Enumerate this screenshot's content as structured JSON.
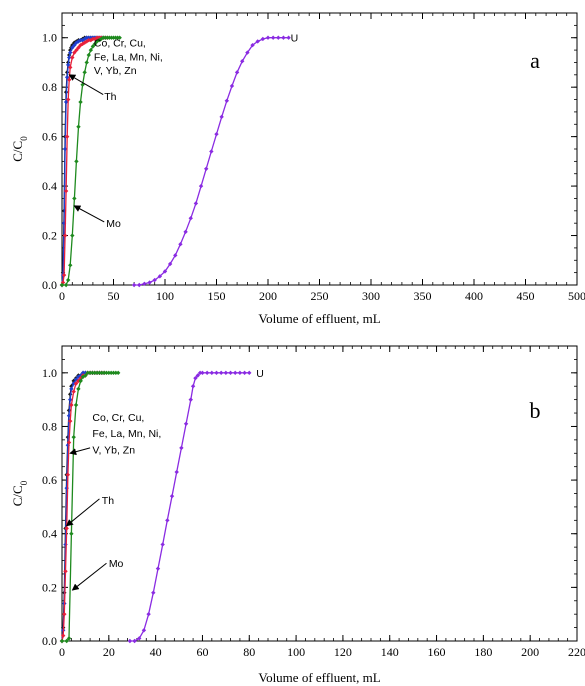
{
  "chart_data": [
    {
      "type": "line",
      "panel_label": "a",
      "xlabel": "Volume of effluent, mL",
      "ylabel_main": "C/C",
      "ylabel_sub": "0",
      "xlim": [
        0,
        500
      ],
      "ylim": [
        0,
        1.1
      ],
      "x_ticks": [
        0,
        50,
        100,
        150,
        200,
        250,
        300,
        350,
        400,
        450,
        500
      ],
      "y_ticks": [
        "0.0",
        "0.2",
        "0.4",
        "0.6",
        "0.8",
        "1.0"
      ],
      "x_minor_step": 10,
      "y_minor_step": 0.05,
      "series": [
        {
          "key": "black",
          "color": "#1a1a1a",
          "x": [
            0,
            1,
            2,
            3,
            4,
            5,
            6,
            7,
            8,
            9,
            10,
            12,
            14,
            16,
            18,
            20,
            22,
            24,
            26,
            28,
            30,
            32,
            34,
            36,
            38,
            40
          ],
          "y": [
            0.0,
            0.05,
            0.3,
            0.6,
            0.78,
            0.86,
            0.9,
            0.93,
            0.95,
            0.96,
            0.97,
            0.98,
            0.985,
            0.99,
            0.99,
            0.995,
            1.0,
            1.0,
            1.0,
            1.0,
            1.0,
            1.0,
            1.0,
            1.0,
            1.0,
            1.0
          ]
        },
        {
          "key": "blue",
          "color": "#1f3fd0",
          "x": [
            0,
            1,
            2,
            3,
            4,
            5,
            6,
            7,
            8,
            10,
            12,
            14,
            16,
            18,
            20,
            22,
            24,
            26,
            28,
            30,
            32,
            34,
            36,
            38,
            40,
            42
          ],
          "y": [
            0.0,
            0.04,
            0.25,
            0.55,
            0.74,
            0.84,
            0.89,
            0.92,
            0.94,
            0.96,
            0.97,
            0.98,
            0.985,
            0.99,
            0.99,
            0.995,
            1.0,
            1.0,
            1.0,
            1.0,
            1.0,
            1.0,
            1.0,
            1.0,
            1.0,
            1.0
          ]
        },
        {
          "key": "red",
          "color": "#e8203a",
          "x": [
            0,
            1,
            2,
            3,
            4,
            5,
            6,
            7,
            8,
            10,
            12,
            14,
            16,
            18,
            20,
            22,
            24,
            26,
            28,
            30,
            32,
            34,
            36,
            38,
            40,
            42,
            44
          ],
          "y": [
            0.0,
            0.01,
            0.04,
            0.2,
            0.38,
            0.6,
            0.75,
            0.83,
            0.88,
            0.92,
            0.94,
            0.95,
            0.96,
            0.97,
            0.975,
            0.98,
            0.985,
            0.99,
            0.99,
            0.995,
            0.995,
            1.0,
            1.0,
            1.0,
            1.0,
            1.0,
            1.0
          ]
        },
        {
          "key": "green",
          "color": "#1e8a1e",
          "x": [
            0,
            4,
            6,
            8,
            10,
            12,
            14,
            16,
            18,
            20,
            22,
            24,
            26,
            28,
            30,
            32,
            34,
            36,
            38,
            40,
            42,
            44,
            46,
            48,
            50,
            52,
            54,
            56
          ],
          "y": [
            0.0,
            0.0,
            0.02,
            0.08,
            0.2,
            0.35,
            0.5,
            0.64,
            0.74,
            0.81,
            0.86,
            0.9,
            0.93,
            0.95,
            0.965,
            0.975,
            0.985,
            0.99,
            0.995,
            1.0,
            1.0,
            1.0,
            1.0,
            1.0,
            1.0,
            1.0,
            1.0,
            1.0
          ]
        },
        {
          "key": "U",
          "color": "#8a2be2",
          "x": [
            70,
            75,
            80,
            85,
            90,
            95,
            100,
            105,
            110,
            115,
            120,
            125,
            130,
            135,
            140,
            145,
            150,
            155,
            160,
            165,
            170,
            175,
            180,
            185,
            190,
            195,
            200,
            205,
            210,
            215,
            220
          ],
          "y": [
            0.0,
            0.0,
            0.005,
            0.01,
            0.02,
            0.035,
            0.055,
            0.085,
            0.12,
            0.165,
            0.215,
            0.27,
            0.33,
            0.4,
            0.47,
            0.54,
            0.61,
            0.68,
            0.745,
            0.805,
            0.86,
            0.905,
            0.94,
            0.97,
            0.985,
            0.995,
            1.0,
            1.0,
            1.0,
            1.0,
            1.0
          ]
        }
      ],
      "annotations": [
        {
          "text": "U",
          "x": 222,
          "y": 1.0,
          "arrow": false
        },
        {
          "text": "Co, Cr, Cu,",
          "x": 31,
          "y": 0.98,
          "arrow": false
        },
        {
          "text": "Fe, La, Mn, Ni,",
          "x": 31,
          "y": 0.925,
          "arrow": false
        },
        {
          "text": "V, Yb, Zn",
          "x": 31,
          "y": 0.87,
          "arrow": false
        },
        {
          "text": "Th",
          "x": 41,
          "y": 0.765,
          "arrow": true,
          "ax": 7,
          "ay": 0.85,
          "tx": 40,
          "ty": 0.77
        },
        {
          "text": "Mo",
          "x": 43,
          "y": 0.25,
          "arrow": true,
          "ax": 12,
          "ay": 0.32,
          "tx": 41,
          "ty": 0.255
        }
      ]
    },
    {
      "type": "line",
      "panel_label": "b",
      "xlabel": "Volume of effluent, mL",
      "ylabel_main": "C/C",
      "ylabel_sub": "0",
      "xlim": [
        0,
        220
      ],
      "ylim": [
        0,
        1.1
      ],
      "x_ticks": [
        0,
        20,
        40,
        60,
        80,
        100,
        120,
        140,
        160,
        180,
        200,
        220
      ],
      "y_ticks": [
        "0.0",
        "0.2",
        "0.4",
        "0.6",
        "0.8",
        "1.0"
      ],
      "x_minor_step": 4,
      "y_minor_step": 0.05,
      "series": [
        {
          "key": "black",
          "color": "#1a1a1a",
          "x": [
            0,
            0.5,
            1,
            1.5,
            2,
            2.5,
            3,
            3.5,
            4,
            5,
            6,
            7,
            8,
            9,
            10,
            11,
            12,
            13,
            14,
            15,
            16,
            17,
            18
          ],
          "y": [
            0.0,
            0.05,
            0.18,
            0.42,
            0.62,
            0.76,
            0.86,
            0.92,
            0.95,
            0.97,
            0.98,
            0.99,
            0.99,
            1.0,
            1.0,
            1.0,
            1.0,
            1.0,
            1.0,
            1.0,
            1.0,
            1.0,
            1.0
          ]
        },
        {
          "key": "blue",
          "color": "#1f3fd0",
          "x": [
            0,
            0.5,
            1,
            1.5,
            2,
            2.5,
            3,
            3.5,
            4,
            5,
            6,
            7,
            8,
            9,
            10,
            11,
            12,
            13,
            14,
            15,
            16,
            17,
            18
          ],
          "y": [
            0.0,
            0.04,
            0.14,
            0.36,
            0.57,
            0.73,
            0.84,
            0.9,
            0.94,
            0.96,
            0.975,
            0.985,
            0.99,
            1.0,
            1.0,
            1.0,
            1.0,
            1.0,
            1.0,
            1.0,
            1.0,
            1.0,
            1.0
          ]
        },
        {
          "key": "red",
          "color": "#e8203a",
          "x": [
            0,
            0.5,
            1,
            1.5,
            2,
            2.5,
            3,
            3.5,
            4,
            5,
            6,
            7,
            8,
            9,
            10,
            11,
            12,
            13,
            14,
            15,
            16,
            17,
            18
          ],
          "y": [
            0.0,
            0.02,
            0.1,
            0.26,
            0.42,
            0.62,
            0.74,
            0.82,
            0.88,
            0.93,
            0.96,
            0.97,
            0.98,
            0.99,
            0.99,
            1.0,
            1.0,
            1.0,
            1.0,
            1.0,
            1.0,
            1.0,
            1.0
          ]
        },
        {
          "key": "green",
          "color": "#1e8a1e",
          "x": [
            0,
            2,
            3,
            4,
            5,
            6,
            7,
            8,
            9,
            10,
            11,
            12,
            13,
            14,
            15,
            16,
            17,
            18,
            19,
            20,
            21,
            22,
            23,
            24
          ],
          "y": [
            0.0,
            0.0,
            0.01,
            0.4,
            0.76,
            0.88,
            0.94,
            0.97,
            0.985,
            0.99,
            1.0,
            1.0,
            1.0,
            1.0,
            1.0,
            1.0,
            1.0,
            1.0,
            1.0,
            1.0,
            1.0,
            1.0,
            1.0,
            1.0
          ]
        },
        {
          "key": "U",
          "color": "#8a2be2",
          "x": [
            29,
            31,
            33,
            35,
            37,
            39,
            41,
            43,
            45,
            47,
            49,
            51,
            53,
            55,
            56,
            57,
            58,
            59,
            60,
            62,
            64,
            66,
            68,
            70,
            72,
            74,
            76,
            78,
            80
          ],
          "y": [
            0.0,
            0.0,
            0.01,
            0.04,
            0.1,
            0.18,
            0.27,
            0.36,
            0.45,
            0.54,
            0.63,
            0.72,
            0.81,
            0.9,
            0.95,
            0.98,
            0.99,
            1.0,
            1.0,
            1.0,
            1.0,
            1.0,
            1.0,
            1.0,
            1.0,
            1.0,
            1.0,
            1.0,
            1.0
          ]
        }
      ],
      "annotations": [
        {
          "text": "U",
          "x": 83,
          "y": 1.0,
          "arrow": false
        },
        {
          "text": "Co, Cr, Cu,",
          "x": 13,
          "y": 0.835,
          "arrow": false
        },
        {
          "text": "Fe, La, Mn, Ni,",
          "x": 13,
          "y": 0.775,
          "arrow": false
        },
        {
          "text": "V, Yb, Zn",
          "x": 13,
          "y": 0.715,
          "arrow": true,
          "ax": 3.5,
          "ay": 0.7,
          "tx": 12,
          "ty": 0.72
        },
        {
          "text": "Th",
          "x": 17,
          "y": 0.525,
          "arrow": true,
          "ax": 2,
          "ay": 0.43,
          "tx": 16,
          "ty": 0.53
        },
        {
          "text": "Mo",
          "x": 20,
          "y": 0.29,
          "arrow": true,
          "ax": 4.5,
          "ay": 0.19,
          "tx": 19,
          "ty": 0.29
        }
      ]
    }
  ]
}
